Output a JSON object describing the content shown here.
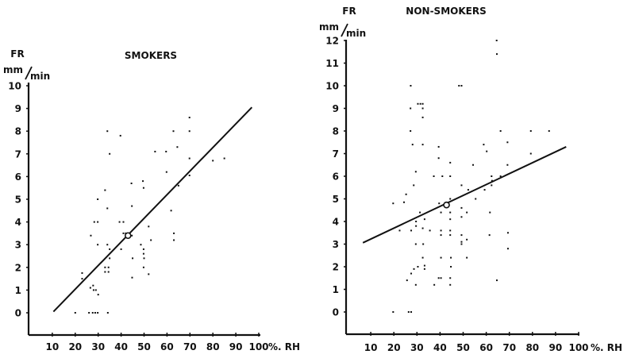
{
  "chart_data": [
    {
      "type": "scatter",
      "title": "SMOKERS",
      "ylabel_top": "FR",
      "ylabel_unit_num": "mm",
      "ylabel_unit_den": "min",
      "xlabel": "%. RH",
      "xlim": [
        0,
        100
      ],
      "ylim": [
        -1,
        10
      ],
      "xticks": [
        "10",
        "20",
        "30",
        "40",
        "50",
        "60",
        "70",
        "80",
        "90",
        "100"
      ],
      "yticks": [
        "0",
        "1",
        "2",
        "3",
        "4",
        "5",
        "6",
        "7",
        "8",
        "9",
        "10"
      ],
      "grid": false,
      "mean_point": [
        43,
        3.4
      ],
      "regression_line": [
        [
          10.5,
          0.05
        ],
        [
          97,
          9.05
        ]
      ],
      "points": [
        [
          20,
          0
        ],
        [
          26,
          0
        ],
        [
          27.6,
          0
        ],
        [
          28.7,
          0
        ],
        [
          29.8,
          0
        ],
        [
          34.2,
          0
        ],
        [
          23,
          1.75
        ],
        [
          23,
          1.5
        ],
        [
          26.6,
          1.1
        ],
        [
          27.8,
          1.2
        ],
        [
          28,
          1.0
        ],
        [
          29,
          1.0
        ],
        [
          30,
          0.8
        ],
        [
          26.8,
          3.4
        ],
        [
          28.3,
          4
        ],
        [
          29.8,
          4
        ],
        [
          29.8,
          5.0
        ],
        [
          29.8,
          3.0
        ],
        [
          33,
          5.4
        ],
        [
          34,
          4.6
        ],
        [
          34,
          8.0
        ],
        [
          35,
          7.0
        ],
        [
          34,
          3.0
        ],
        [
          35,
          2.8
        ],
        [
          35,
          2.4
        ],
        [
          33,
          2
        ],
        [
          34.5,
          2
        ],
        [
          33,
          1.8
        ],
        [
          34.5,
          1.8
        ],
        [
          39.7,
          7.8
        ],
        [
          39.3,
          4
        ],
        [
          41,
          4
        ],
        [
          40,
          2.8
        ],
        [
          41,
          3.5
        ],
        [
          42,
          3.5
        ],
        [
          44.5,
          5.7
        ],
        [
          44.7,
          4.7
        ],
        [
          44.7,
          3.4
        ],
        [
          45,
          2.4
        ],
        [
          44.8,
          1.55
        ],
        [
          49.5,
          5.8
        ],
        [
          49.8,
          5.5
        ],
        [
          48.6,
          3.0
        ],
        [
          49.8,
          2.8
        ],
        [
          49.8,
          2.6
        ],
        [
          50,
          2.4
        ],
        [
          49.8,
          2.0
        ],
        [
          52,
          1.7
        ],
        [
          52,
          3.8
        ],
        [
          53,
          3.2
        ],
        [
          54.8,
          7.1
        ],
        [
          59.6,
          7.1
        ],
        [
          59.8,
          6.2
        ],
        [
          61.8,
          4.5
        ],
        [
          62.8,
          8.0
        ],
        [
          63,
          3.5
        ],
        [
          63,
          3.2
        ],
        [
          64.5,
          7.3
        ],
        [
          65,
          5.6
        ],
        [
          69.8,
          8.6
        ],
        [
          69.8,
          8.0
        ],
        [
          69.8,
          6.8
        ],
        [
          69.8,
          6.05
        ],
        [
          80,
          6.7
        ],
        [
          85,
          6.8
        ]
      ]
    },
    {
      "type": "scatter",
      "title": "NON-SMOKERS",
      "ylabel_top": "FR",
      "ylabel_unit_num": "mm",
      "ylabel_unit_den": "min",
      "xlabel": "%. RH",
      "xlim": [
        0,
        100
      ],
      "ylim": [
        -1,
        12
      ],
      "xticks": [
        "10",
        "20",
        "30",
        "40",
        "50",
        "60",
        "70",
        "80",
        "90",
        "100"
      ],
      "yticks": [
        "0",
        "1",
        "2",
        "3",
        "4",
        "5",
        "6",
        "7",
        "8",
        "9",
        "10",
        "11",
        "12"
      ],
      "grid": false,
      "mean_point": [
        42.8,
        4.73
      ],
      "regression_line": [
        [
          6.6,
          3.06
        ],
        [
          94.6,
          7.3
        ]
      ],
      "points": [
        [
          19.7,
          0
        ],
        [
          26.4,
          0
        ],
        [
          27.5,
          0
        ],
        [
          19.7,
          4.8
        ],
        [
          24.4,
          4.85
        ],
        [
          25.3,
          5.2
        ],
        [
          22.5,
          3.6
        ],
        [
          25.7,
          1.4
        ],
        [
          27.5,
          1.7
        ],
        [
          28.7,
          1.9
        ],
        [
          29.5,
          1.2
        ],
        [
          30.4,
          2.0
        ],
        [
          29.5,
          3.0
        ],
        [
          27.5,
          3.6
        ],
        [
          27.3,
          10
        ],
        [
          27.2,
          9
        ],
        [
          27.2,
          8
        ],
        [
          28.1,
          7.4
        ],
        [
          28.6,
          5.6
        ],
        [
          29.5,
          6.2
        ],
        [
          30.4,
          9.2
        ],
        [
          31.5,
          9.2
        ],
        [
          32.5,
          9.2
        ],
        [
          32.5,
          9.0
        ],
        [
          32.5,
          8.6
        ],
        [
          32.5,
          7.4
        ],
        [
          31.3,
          4.4
        ],
        [
          29.6,
          4.0
        ],
        [
          29.6,
          3.8
        ],
        [
          32.5,
          3.7
        ],
        [
          33.3,
          4.1
        ],
        [
          35.6,
          3.6
        ],
        [
          32.7,
          3.0
        ],
        [
          32.5,
          2.4
        ],
        [
          33.3,
          2.05
        ],
        [
          33.3,
          1.9
        ],
        [
          37.3,
          6
        ],
        [
          37.5,
          1.2
        ],
        [
          39.4,
          7.3
        ],
        [
          39.4,
          6.8
        ],
        [
          41,
          6
        ],
        [
          39.6,
          4.8
        ],
        [
          40.4,
          4.4
        ],
        [
          40.4,
          3.6
        ],
        [
          40.4,
          3.4
        ],
        [
          40.4,
          2.4
        ],
        [
          39.4,
          1.5
        ],
        [
          40.4,
          1.5
        ],
        [
          44.4,
          6.6
        ],
        [
          44.4,
          6
        ],
        [
          44.4,
          5.0
        ],
        [
          44.4,
          4.4
        ],
        [
          44.4,
          4.1
        ],
        [
          44.4,
          3.6
        ],
        [
          44.4,
          3.4
        ],
        [
          44.7,
          2.4
        ],
        [
          44.7,
          2.0
        ],
        [
          44.4,
          1.5
        ],
        [
          44.4,
          1.2
        ],
        [
          48.2,
          10
        ],
        [
          49.3,
          10
        ],
        [
          49.3,
          5.6
        ],
        [
          49.3,
          4.6
        ],
        [
          49.3,
          4.2
        ],
        [
          49.3,
          3.4
        ],
        [
          49.3,
          3.1
        ],
        [
          49.3,
          3.0
        ],
        [
          51.6,
          4.4
        ],
        [
          51.6,
          3.2
        ],
        [
          51.6,
          2.4
        ],
        [
          52.2,
          5.4
        ],
        [
          54.3,
          6.5
        ],
        [
          55.4,
          5.0
        ],
        [
          58.9,
          7.4
        ],
        [
          60.2,
          7.1
        ],
        [
          59.3,
          5.4
        ],
        [
          61.6,
          4.4
        ],
        [
          61.4,
          3.4
        ],
        [
          62.3,
          6.0
        ],
        [
          62.3,
          5.6
        ],
        [
          62.5,
          5.8
        ],
        [
          64.5,
          12
        ],
        [
          64.6,
          11.4
        ],
        [
          64.6,
          1.4
        ],
        [
          66.2,
          8
        ],
        [
          66.2,
          6
        ],
        [
          69.2,
          7.5
        ],
        [
          69.2,
          6.5
        ],
        [
          69.4,
          3.5
        ],
        [
          69.4,
          2.8
        ],
        [
          79.3,
          8
        ],
        [
          79.3,
          7.0
        ],
        [
          87.2,
          8
        ]
      ]
    }
  ]
}
